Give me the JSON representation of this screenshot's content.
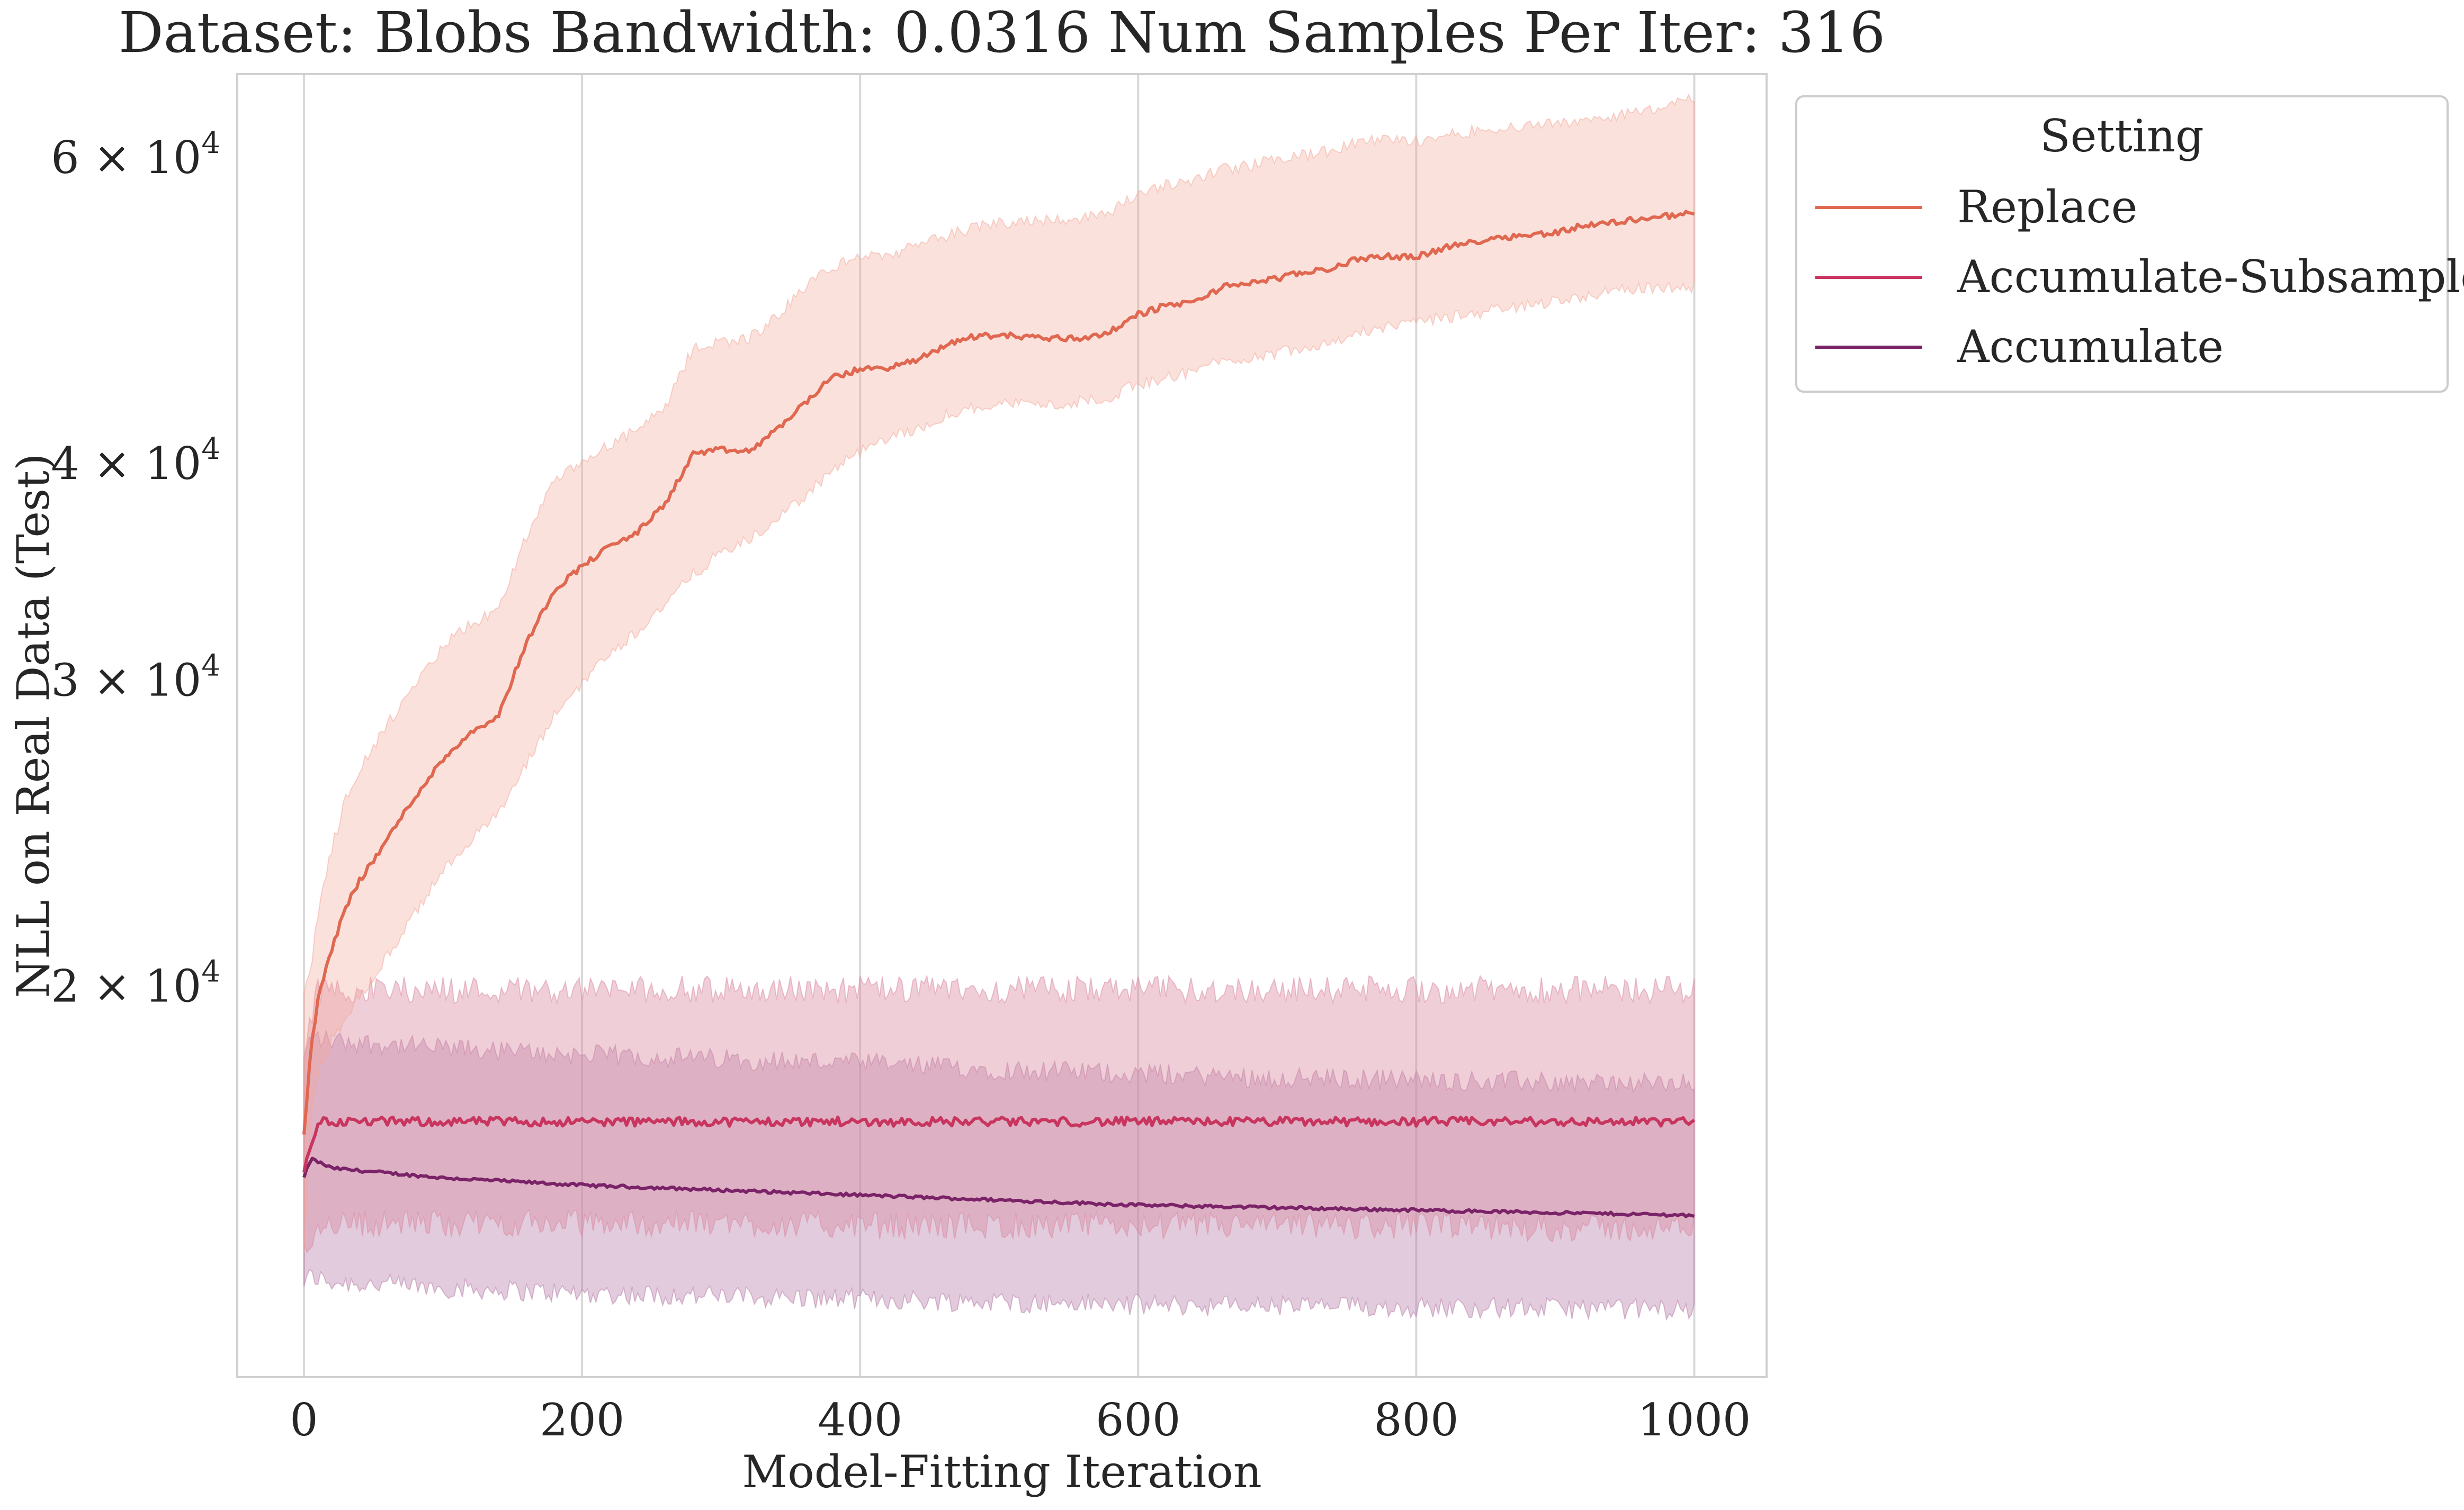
{
  "chart_data": {
    "type": "line",
    "title": "Dataset: Blobs Bandwidth: 0.0316 Num Samples Per Iter: 316",
    "xlabel": "Model-Fitting Iteration",
    "ylabel": "NLL on Real Data (Test)",
    "xlim": [
      -48,
      1052
    ],
    "ylim": [
      11900,
      67000
    ],
    "yscale": "log",
    "grid": "vertical",
    "x_ticks": [
      0,
      200,
      400,
      600,
      800,
      1000
    ],
    "x_tick_labels": [
      "0",
      "200",
      "400",
      "600",
      "800",
      "1000"
    ],
    "y_ticks": [
      {
        "value": 20000,
        "mant": "2",
        "exp": "4"
      },
      {
        "value": 30000,
        "mant": "3",
        "exp": "4"
      },
      {
        "value": 40000,
        "mant": "4",
        "exp": "4"
      },
      {
        "value": 60000,
        "mant": "6",
        "exp": "4"
      }
    ],
    "y_tick_mid": " × 10",
    "legend": {
      "title": "Setting",
      "position": "outside-top-right"
    },
    "series": [
      {
        "name": "Replace",
        "color": "#e06850",
        "band_color": "#f2a898",
        "x": [
          0,
          5,
          10,
          20,
          30,
          40,
          50,
          60,
          80,
          100,
          120,
          140,
          160,
          180,
          200,
          220,
          240,
          260,
          280,
          300,
          320,
          340,
          360,
          380,
          400,
          420,
          440,
          460,
          480,
          500,
          520,
          540,
          560,
          580,
          600,
          620,
          640,
          660,
          680,
          700,
          720,
          740,
          760,
          780,
          800,
          820,
          840,
          860,
          880,
          900,
          920,
          940,
          960,
          980,
          1000
        ],
        "mean": [
          16400,
          18400,
          19600,
          21000,
          22200,
          23000,
          23600,
          24300,
          25700,
          27000,
          28000,
          28600,
          31500,
          33800,
          34900,
          35800,
          36500,
          37900,
          40500,
          40700,
          40600,
          41800,
          43300,
          44800,
          45300,
          45400,
          45800,
          46700,
          47300,
          47400,
          47300,
          47200,
          47200,
          47600,
          48700,
          49300,
          49500,
          50500,
          50800,
          51100,
          51500,
          51800,
          52500,
          52600,
          52600,
          53200,
          53600,
          54000,
          54100,
          54300,
          54800,
          55000,
          55300,
          55500,
          55700
        ],
        "lower": [
          14000,
          16800,
          17800,
          18600,
          19200,
          19700,
          20200,
          20800,
          22000,
          23300,
          24300,
          25100,
          26800,
          28600,
          29900,
          31100,
          32000,
          33200,
          34500,
          35500,
          36100,
          37100,
          38300,
          39600,
          40600,
          41300,
          41800,
          42600,
          43000,
          43300,
          43300,
          43200,
          43400,
          43700,
          44400,
          44800,
          45200,
          45800,
          46000,
          46300,
          46700,
          47000,
          47600,
          47900,
          48200,
          48500,
          48700,
          49100,
          49300,
          49600,
          49900,
          50200,
          50400,
          50500,
          50500
        ],
        "upper": [
          19800,
          20500,
          22000,
          24000,
          25600,
          26700,
          27400,
          28300,
          29700,
          31400,
          32300,
          32900,
          36300,
          39000,
          40000,
          41000,
          41800,
          43000,
          46600,
          47000,
          47200,
          48500,
          50500,
          51900,
          52600,
          52700,
          53300,
          54000,
          54600,
          55000,
          55200,
          55300,
          55300,
          55900,
          57100,
          57800,
          58200,
          59100,
          59300,
          59900,
          60200,
          60500,
          61300,
          61400,
          61300,
          61800,
          62100,
          62400,
          62600,
          62700,
          63100,
          63400,
          63700,
          64300,
          64800
        ]
      },
      {
        "name": "Accumulate-Subsample",
        "color": "#c8355f",
        "band_color": "#d98aa2",
        "x": [
          0,
          10,
          100,
          200,
          300,
          400,
          500,
          600,
          700,
          800,
          900,
          1000
        ],
        "mean": [
          15600,
          16700,
          16700,
          16700,
          16700,
          16700,
          16700,
          16700,
          16700,
          16700,
          16700,
          16700
        ],
        "lower": [
          14000,
          14600,
          14600,
          14600,
          14600,
          14550,
          14550,
          14550,
          14550,
          14550,
          14500,
          14500
        ],
        "upper": [
          18300,
          19900,
          19900,
          19900,
          19900,
          19900,
          19900,
          19900,
          19900,
          19900,
          19900,
          19900
        ]
      },
      {
        "name": "Accumulate",
        "color": "#7a2368",
        "band_color": "#b77ea8",
        "x": [
          0,
          5,
          20,
          60,
          100,
          200,
          300,
          400,
          500,
          600,
          700,
          800,
          900,
          1000
        ],
        "mean": [
          15500,
          15900,
          15700,
          15600,
          15500,
          15350,
          15250,
          15150,
          15050,
          14950,
          14900,
          14850,
          14800,
          14750
        ],
        "lower": [
          13500,
          13600,
          13500,
          13450,
          13400,
          13300,
          13250,
          13200,
          13150,
          13100,
          13080,
          13060,
          13040,
          13020
        ],
        "upper": [
          18100,
          18700,
          18600,
          18500,
          18400,
          18250,
          18150,
          18050,
          17900,
          17800,
          17700,
          17650,
          17600,
          17550
        ]
      }
    ]
  }
}
